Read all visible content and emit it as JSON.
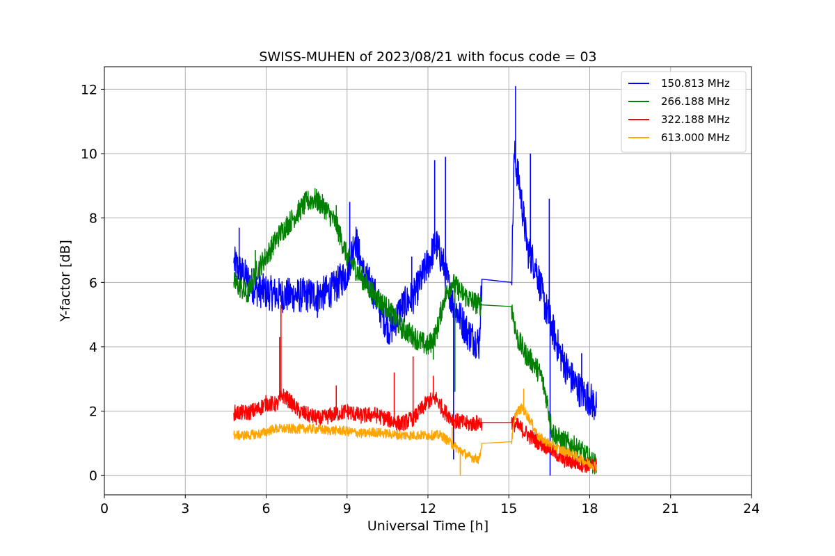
{
  "chart_data": {
    "type": "line",
    "title": "SWISS-MUHEN of 2023/08/21 with focus code = 03",
    "xlabel": "Universal Time [h]",
    "ylabel": "Y-factor [dB]",
    "xlim": [
      0,
      24
    ],
    "ylim": [
      -0.6,
      12.7
    ],
    "xticks": [
      0,
      3,
      6,
      9,
      12,
      15,
      18,
      21,
      24
    ],
    "yticks": [
      0,
      2,
      4,
      6,
      8,
      10,
      12
    ],
    "grid": true,
    "legend_position": "top-right",
    "series": [
      {
        "name": "150.813 MHz",
        "color": "#0000ff",
        "points": [
          [
            4.8,
            6.6
          ],
          [
            5.0,
            6.4
          ],
          [
            5.3,
            6.1
          ],
          [
            5.6,
            5.8
          ],
          [
            6.0,
            5.7
          ],
          [
            6.5,
            5.6
          ],
          [
            7.0,
            5.6
          ],
          [
            7.5,
            5.6
          ],
          [
            8.0,
            5.6
          ],
          [
            8.5,
            5.8
          ],
          [
            9.0,
            6.3
          ],
          [
            9.3,
            7.4
          ],
          [
            9.6,
            6.3
          ],
          [
            10.0,
            5.7
          ],
          [
            10.3,
            5.0
          ],
          [
            10.6,
            4.5
          ],
          [
            11.0,
            5.2
          ],
          [
            11.5,
            5.6
          ],
          [
            12.0,
            6.6
          ],
          [
            12.3,
            7.2
          ],
          [
            12.6,
            6.5
          ],
          [
            12.9,
            5.4
          ],
          [
            13.2,
            4.9
          ],
          [
            13.5,
            4.4
          ],
          [
            13.9,
            4.1
          ],
          [
            14.0,
            6.1
          ],
          [
            15.1,
            6.0
          ],
          [
            15.2,
            10.0
          ],
          [
            15.4,
            9.0
          ],
          [
            15.7,
            7.0
          ],
          [
            16.0,
            6.5
          ],
          [
            16.3,
            5.4
          ],
          [
            16.6,
            4.6
          ],
          [
            16.9,
            3.8
          ],
          [
            17.2,
            3.2
          ],
          [
            17.5,
            2.8
          ],
          [
            17.8,
            2.5
          ],
          [
            18.0,
            2.4
          ],
          [
            18.25,
            2.1
          ]
        ],
        "spikes": [
          [
            5.0,
            7.7
          ],
          [
            7.9,
            4.9
          ],
          [
            9.1,
            8.5
          ],
          [
            11.4,
            6.8
          ],
          [
            12.25,
            9.8
          ],
          [
            12.65,
            9.9
          ],
          [
            15.25,
            12.1
          ],
          [
            15.8,
            10.0
          ],
          [
            16.5,
            8.6
          ],
          [
            16.53,
            0.0
          ],
          [
            17.7,
            3.8
          ],
          [
            12.95,
            0.5
          ]
        ]
      },
      {
        "name": "266.188 MHz",
        "color": "#008000",
        "points": [
          [
            4.8,
            6.0
          ],
          [
            5.1,
            5.8
          ],
          [
            5.3,
            5.6
          ],
          [
            5.6,
            6.3
          ],
          [
            6.0,
            6.8
          ],
          [
            6.5,
            7.5
          ],
          [
            7.0,
            8.0
          ],
          [
            7.5,
            8.5
          ],
          [
            7.8,
            8.6
          ],
          [
            8.2,
            8.3
          ],
          [
            8.6,
            7.8
          ],
          [
            9.0,
            6.8
          ],
          [
            9.5,
            6.2
          ],
          [
            10.0,
            5.6
          ],
          [
            10.5,
            5.2
          ],
          [
            11.0,
            4.6
          ],
          [
            11.5,
            4.3
          ],
          [
            12.0,
            4.0
          ],
          [
            12.3,
            4.4
          ],
          [
            12.6,
            5.5
          ],
          [
            12.9,
            6.0
          ],
          [
            13.2,
            5.7
          ],
          [
            13.5,
            5.5
          ],
          [
            13.9,
            5.3
          ],
          [
            14.0,
            5.3
          ],
          [
            15.1,
            5.25
          ],
          [
            15.3,
            4.3
          ],
          [
            15.6,
            3.8
          ],
          [
            15.9,
            3.5
          ],
          [
            16.2,
            3.1
          ],
          [
            16.4,
            2.4
          ],
          [
            16.6,
            1.4
          ],
          [
            16.9,
            1.1
          ],
          [
            17.2,
            1.0
          ],
          [
            17.6,
            0.8
          ],
          [
            18.0,
            0.5
          ],
          [
            18.25,
            0.3
          ]
        ],
        "spikes": [
          [
            8.6,
            8.4
          ],
          [
            5.6,
            7.0
          ],
          [
            12.2,
            3.6
          ],
          [
            13.0,
            2.6
          ]
        ]
      },
      {
        "name": "322.188 MHz",
        "color": "#ff0000",
        "points": [
          [
            4.8,
            1.95
          ],
          [
            5.3,
            1.95
          ],
          [
            5.7,
            2.05
          ],
          [
            6.0,
            2.25
          ],
          [
            6.4,
            2.2
          ],
          [
            6.6,
            2.5
          ],
          [
            6.9,
            2.3
          ],
          [
            7.2,
            2.0
          ],
          [
            7.5,
            1.9
          ],
          [
            8.0,
            1.75
          ],
          [
            8.5,
            1.9
          ],
          [
            9.0,
            2.0
          ],
          [
            9.5,
            1.85
          ],
          [
            10.0,
            1.9
          ],
          [
            10.5,
            1.75
          ],
          [
            11.0,
            1.6
          ],
          [
            11.5,
            1.8
          ],
          [
            12.0,
            2.3
          ],
          [
            12.3,
            2.4
          ],
          [
            12.6,
            2.0
          ],
          [
            13.0,
            1.7
          ],
          [
            13.5,
            1.6
          ],
          [
            14.0,
            1.65
          ],
          [
            15.1,
            1.65
          ],
          [
            15.4,
            1.5
          ],
          [
            15.8,
            1.2
          ],
          [
            16.2,
            1.0
          ],
          [
            16.6,
            0.8
          ],
          [
            17.0,
            0.5
          ],
          [
            17.5,
            0.4
          ],
          [
            18.0,
            0.3
          ],
          [
            18.25,
            0.35
          ]
        ],
        "spikes": [
          [
            6.55,
            5.3
          ],
          [
            6.5,
            4.3
          ],
          [
            10.75,
            3.2
          ],
          [
            11.45,
            3.7
          ],
          [
            8.6,
            2.8
          ],
          [
            12.2,
            3.1
          ]
        ]
      },
      {
        "name": "613.000 MHz",
        "color": "#ffa500",
        "points": [
          [
            4.8,
            1.25
          ],
          [
            5.3,
            1.25
          ],
          [
            5.8,
            1.3
          ],
          [
            6.3,
            1.45
          ],
          [
            6.8,
            1.45
          ],
          [
            7.3,
            1.45
          ],
          [
            7.8,
            1.45
          ],
          [
            8.3,
            1.4
          ],
          [
            8.8,
            1.4
          ],
          [
            9.2,
            1.35
          ],
          [
            9.6,
            1.3
          ],
          [
            10.0,
            1.35
          ],
          [
            10.5,
            1.3
          ],
          [
            11.0,
            1.25
          ],
          [
            11.5,
            1.25
          ],
          [
            12.0,
            1.25
          ],
          [
            12.5,
            1.25
          ],
          [
            13.0,
            0.9
          ],
          [
            13.5,
            0.6
          ],
          [
            13.9,
            0.5
          ],
          [
            14.0,
            1.0
          ],
          [
            15.1,
            1.05
          ],
          [
            15.25,
            1.95
          ],
          [
            15.5,
            2.1
          ],
          [
            15.8,
            1.7
          ],
          [
            16.1,
            1.2
          ],
          [
            16.5,
            1.0
          ],
          [
            16.9,
            0.8
          ],
          [
            17.3,
            0.7
          ],
          [
            17.7,
            0.5
          ],
          [
            18.0,
            0.35
          ],
          [
            18.25,
            0.3
          ]
        ],
        "spikes": [
          [
            13.2,
            0.0
          ],
          [
            15.55,
            2.7
          ],
          [
            12.9,
            1.5
          ]
        ]
      }
    ]
  }
}
